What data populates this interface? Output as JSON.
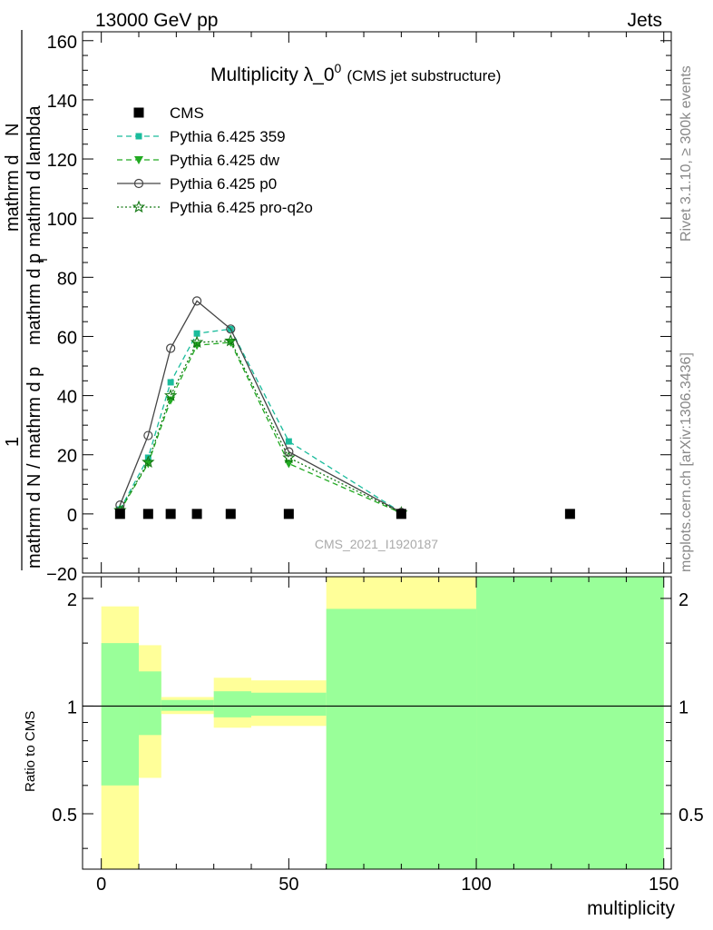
{
  "header": {
    "energy_label": "13000 GeV pp",
    "category_label": "Jets"
  },
  "side_labels": {
    "rivet": "Rivet 3.1.10, ≥ 300k events",
    "mcplots": "mcplots.cern.ch [arXiv:1306.3436]"
  },
  "watermark": "CMS_2021_I1920187",
  "chart_data": [
    {
      "type": "line",
      "title": "Multiplicity λ_0",
      "title_sup": "0",
      "subtitle": "(CMS jet substructure)",
      "ylabel_numerator": "1",
      "ylabel_line1": "mathrm d N / mathrm d p",
      "ylabel_line1b": "mathrm d p",
      "ylabel_line2": "mathrm d",
      "ylabel_N": "N",
      "ylabel_T": "T",
      "ylabel_tail": "mathrm d lambda",
      "xlim": [
        -5,
        152
      ],
      "ylim": [
        -20,
        163
      ],
      "x_ticks": [
        0,
        50,
        100,
        150
      ],
      "y_ticks": [
        -20,
        0,
        20,
        40,
        60,
        80,
        100,
        120,
        140,
        160
      ],
      "legend": [
        "CMS",
        "Pythia 6.425 359",
        "Pythia 6.425 dw",
        "Pythia 6.425 p0",
        "Pythia 6.425 pro-q2o"
      ],
      "legend_placement": "top-left",
      "series": [
        {
          "name": "CMS",
          "color": "#000000",
          "marker": "square",
          "x": [
            5,
            12.5,
            18.5,
            25.5,
            34.5,
            50,
            80,
            125
          ],
          "y": [
            0,
            0,
            0,
            0,
            0,
            0,
            0,
            0
          ]
        },
        {
          "name": "Pythia 6.425 359",
          "color": "#1abc9c",
          "marker": "small-square",
          "line": "dashed",
          "x": [
            5,
            12.5,
            18.5,
            25.5,
            34.5,
            50,
            80
          ],
          "y": [
            1.5,
            19,
            44.5,
            61,
            62.5,
            24.5,
            0.5
          ]
        },
        {
          "name": "Pythia 6.425 dw",
          "color": "#22aa22",
          "marker": "triangle-down",
          "line": "dashed",
          "x": [
            5,
            12.5,
            18.5,
            25.5,
            34.5,
            50,
            80
          ],
          "y": [
            1,
            17,
            38.5,
            57,
            58,
            17,
            0.3
          ]
        },
        {
          "name": "Pythia 6.425 p0",
          "color": "#444444",
          "marker": "open-circle",
          "line": "solid",
          "x": [
            5,
            12.5,
            18.5,
            25.5,
            34.5,
            50,
            80
          ],
          "y": [
            3,
            26.5,
            56,
            72,
            62.5,
            21,
            0.5
          ]
        },
        {
          "name": "Pythia 6.425 pro-q2o",
          "color": "#117711",
          "marker": "star",
          "line": "dotted",
          "x": [
            5,
            12.5,
            18.5,
            25.5,
            34.5,
            50,
            80
          ],
          "y": [
            1.2,
            17.5,
            40,
            58,
            58.5,
            19,
            0.4
          ]
        }
      ]
    },
    {
      "type": "area",
      "ylabel": "Ratio to CMS",
      "xlabel": "multiplicity",
      "xlim": [
        -5,
        152
      ],
      "ylim": [
        0.35,
        2.3
      ],
      "log_y": true,
      "x_ticks": [
        0,
        50,
        100,
        150
      ],
      "y_ticks": [
        0.5,
        1,
        2
      ],
      "reference_line": 1,
      "bands": [
        {
          "x0": 0,
          "x1": 10,
          "yellow": [
            0.3,
            1.9
          ],
          "green": [
            0.6,
            1.5
          ]
        },
        {
          "x0": 10,
          "x1": 16,
          "yellow": [
            0.63,
            1.48
          ],
          "green": [
            0.83,
            1.25
          ]
        },
        {
          "x0": 16,
          "x1": 30,
          "yellow": [
            0.95,
            1.06
          ],
          "green": [
            0.97,
            1.04
          ]
        },
        {
          "x0": 30,
          "x1": 40,
          "yellow": [
            0.87,
            1.2
          ],
          "green": [
            0.93,
            1.1
          ]
        },
        {
          "x0": 40,
          "x1": 60,
          "yellow": [
            0.88,
            1.18
          ],
          "green": [
            0.94,
            1.09
          ]
        },
        {
          "x0": 60,
          "x1": 100,
          "yellow": [
            0.3,
            2.5
          ],
          "green": [
            0.3,
            1.87
          ]
        },
        {
          "x0": 100,
          "x1": 150,
          "yellow": [
            0.3,
            2.5
          ],
          "green": [
            0.3,
            2.5
          ]
        }
      ],
      "colors": {
        "yellow": "#ffff99",
        "green": "#99ff99"
      }
    }
  ]
}
